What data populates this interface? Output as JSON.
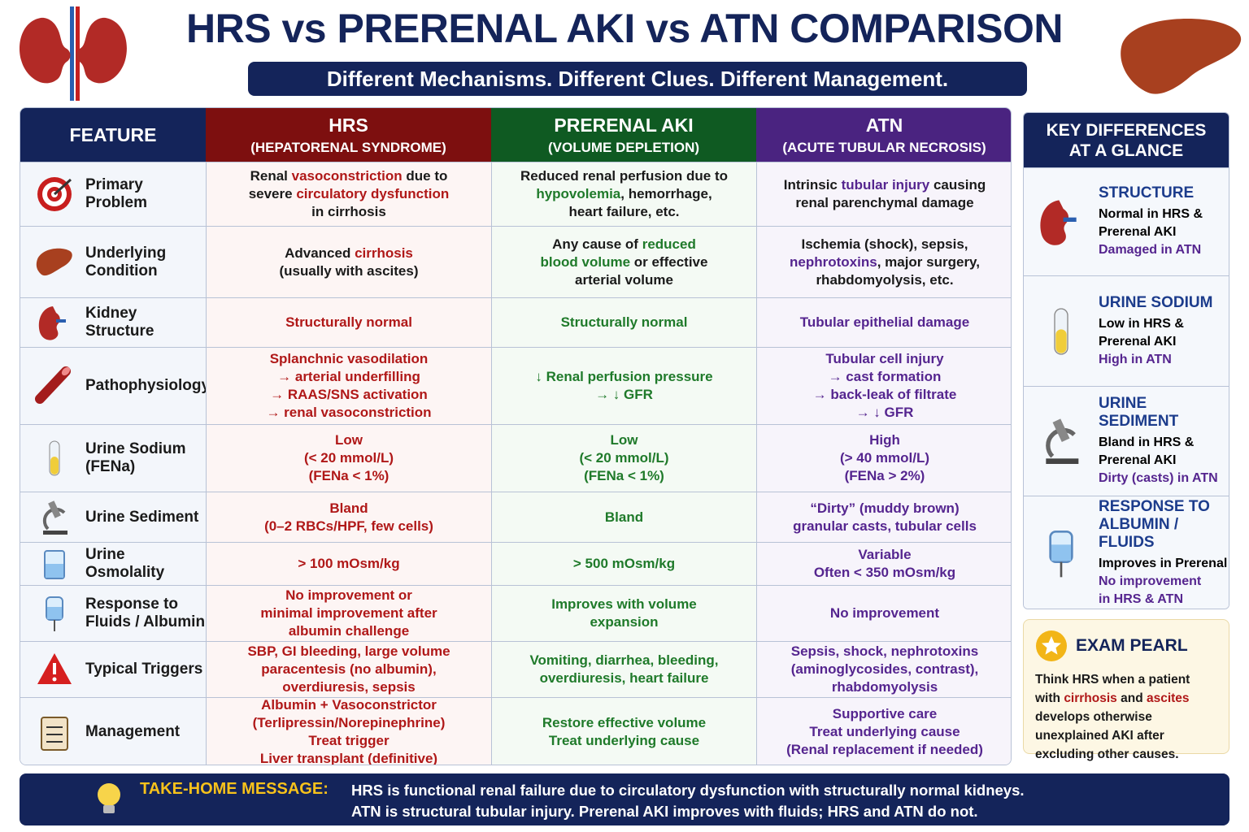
{
  "header": {
    "title": "HRS vs PRERENAL AKI vs ATN COMPARISON",
    "subtitle": "Different Mechanisms. Different Clues. Different Management."
  },
  "table": {
    "headers": [
      {
        "title": "FEATURE"
      },
      {
        "title": "HRS",
        "subtitle": "(HEPATORENAL SYNDROME)"
      },
      {
        "title": "PRERENAL AKI",
        "subtitle": "(VOLUME DEPLETION)"
      },
      {
        "title": "ATN",
        "subtitle": "(ACUTE TUBULAR NECROSIS)"
      }
    ],
    "rows": [
      {
        "feature": [
          "Primary",
          "Problem"
        ],
        "cells": [
          [
            [
              "Renal ",
              {
                "hl": "vasoconstriction"
              },
              " due to"
            ],
            [
              "severe ",
              {
                "hl": "circulatory dysfunction"
              }
            ],
            "in cirrhosis"
          ],
          [
            "Reduced renal perfusion due to",
            [
              {
                "hl": "hypovolemia"
              },
              ", hemorrhage,"
            ],
            "heart failure, etc."
          ],
          [
            [
              "Intrinsic ",
              {
                "hl": "tubular injury"
              },
              " causing"
            ],
            "renal parenchymal damage"
          ]
        ]
      },
      {
        "feature": [
          "Underlying",
          "Condition"
        ],
        "cells": [
          [
            [
              "Advanced ",
              {
                "hl": "cirrhosis"
              }
            ],
            "(usually with ascites)"
          ],
          [
            [
              "Any cause of ",
              {
                "hl": "reduced"
              }
            ],
            [
              {
                "hl": "blood volume"
              },
              " or effective"
            ],
            "arterial volume"
          ],
          [
            "Ischemia (shock), sepsis,",
            [
              {
                "hl": "nephrotoxins"
              },
              ", major surgery,"
            ],
            "rhabdomyolysis, etc."
          ]
        ]
      },
      {
        "feature": [
          "Kidney",
          "Structure"
        ],
        "cells": [
          {
            "hl": [
              "Structurally normal"
            ]
          },
          {
            "hl": [
              "Structurally normal"
            ]
          },
          {
            "hl": [
              "Tubular epithelial damage"
            ]
          }
        ]
      },
      {
        "feature": [
          "Pathophysiology"
        ],
        "cells": [
          {
            "hl": [
              "Splanchnic vasodilation",
              "→ arterial underfilling",
              "→ RAAS/SNS activation",
              "→ renal vasoconstriction"
            ]
          },
          {
            "hl": [
              "↓ Renal perfusion pressure",
              "→ ↓ GFR"
            ]
          },
          {
            "hl": [
              "Tubular cell injury",
              "→ cast formation",
              "→ back-leak of filtrate",
              "→ ↓ GFR"
            ]
          }
        ]
      },
      {
        "feature": [
          "Urine Sodium",
          "(FENa)"
        ],
        "cells": [
          {
            "hl": [
              "Low",
              "(< 20 mmol/L)",
              "(FENa < 1%)"
            ]
          },
          {
            "hl": [
              "Low",
              "(< 20 mmol/L)",
              "(FENa < 1%)"
            ]
          },
          {
            "hl": [
              "High",
              "(> 40 mmol/L)",
              "(FENa > 2%)"
            ]
          }
        ]
      },
      {
        "feature": [
          "Urine Sediment"
        ],
        "cells": [
          {
            "hl": [
              "Bland",
              "(0–2 RBCs/HPF, few cells)"
            ]
          },
          {
            "hl": [
              "Bland"
            ]
          },
          {
            "hl": [
              "“Dirty” (muddy brown)",
              "granular casts, tubular cells"
            ]
          }
        ]
      },
      {
        "feature": [
          "Urine Osmolality"
        ],
        "cells": [
          {
            "hl": [
              "> 100 mOsm/kg"
            ]
          },
          {
            "hl": [
              "> 500 mOsm/kg"
            ]
          },
          {
            "hl": [
              "Variable",
              "Often < 350 mOsm/kg"
            ]
          }
        ]
      },
      {
        "feature": [
          "Response to",
          "Fluids / Albumin"
        ],
        "cells": [
          {
            "hl": [
              "No improvement or",
              "minimal improvement after",
              "albumin challenge"
            ]
          },
          {
            "hl": [
              "Improves with volume",
              "expansion"
            ]
          },
          {
            "hl": [
              "No improvement"
            ]
          }
        ]
      },
      {
        "feature": [
          "Typical Triggers"
        ],
        "cells": [
          {
            "hl": [
              "SBP, GI bleeding, large volume",
              "paracentesis (no albumin),",
              "overdiuresis, sepsis"
            ]
          },
          {
            "hl": [
              "Vomiting, diarrhea, bleeding,",
              "overdiuresis, heart failure"
            ]
          },
          {
            "hl": [
              "Sepsis, shock, nephrotoxins",
              "(aminoglycosides, contrast),",
              "rhabdomyolysis"
            ]
          }
        ]
      },
      {
        "feature": [
          "Management"
        ],
        "cells": [
          {
            "hl": [
              "Albumin + Vasoconstrictor",
              "(Terlipressin/Norepinephrine)",
              "Treat trigger",
              "Liver transplant (definitive)"
            ]
          },
          {
            "hl": [
              "Restore effective volume",
              "Treat underlying cause"
            ]
          },
          {
            "hl": [
              "Supportive care",
              "Treat underlying cause",
              "(Renal replacement if needed)"
            ]
          }
        ]
      }
    ]
  },
  "sidebar": {
    "title": [
      "KEY DIFFERENCES",
      "AT A GLANCE"
    ],
    "items": [
      {
        "title": [
          "STRUCTURE"
        ],
        "lines": [
          "Normal in HRS &",
          "Prerenal AKI",
          {
            "hl": "Damaged in ATN"
          }
        ]
      },
      {
        "title": [
          "URINE SODIUM"
        ],
        "lines": [
          "Low in HRS &",
          "Prerenal AKI",
          {
            "hl": "High in ATN"
          }
        ]
      },
      {
        "title": [
          "URINE SEDIMENT"
        ],
        "lines": [
          "Bland in HRS &",
          "Prerenal AKI",
          {
            "hl": "Dirty (casts) in ATN"
          }
        ]
      },
      {
        "title": [
          "RESPONSE TO",
          "ALBUMIN / FLUIDS"
        ],
        "lines": [
          "Improves in Prerenal",
          {
            "hl": "No improvement"
          },
          {
            "hl": "in HRS & ATN"
          }
        ]
      }
    ]
  },
  "pearl": {
    "title": "EXAM PEARL",
    "text": [
      "Think HRS when a patient with ",
      {
        "hl": "cirrhosis"
      },
      " and ",
      {
        "hl": "ascites"
      },
      " develops otherwise unexplained AKI after excluding other causes."
    ]
  },
  "footer": {
    "label": "TAKE-HOME MESSAGE:",
    "lines": [
      "HRS is functional renal failure due to circulatory dysfunction with structurally normal kidneys.",
      "ATN is structural tubular injury. Prerenal AKI improves with fluids; HRS and ATN do not."
    ]
  }
}
